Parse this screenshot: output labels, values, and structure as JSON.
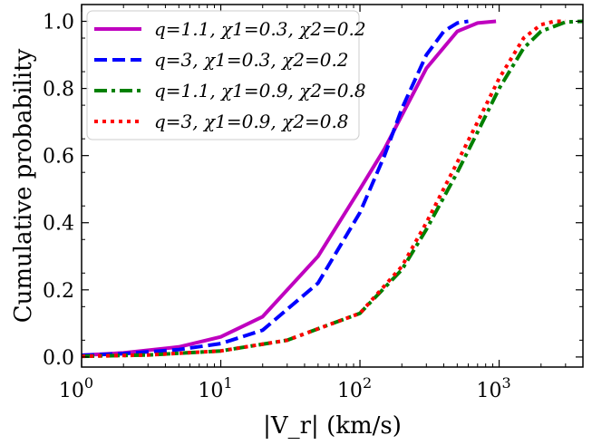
{
  "chart_data": {
    "type": "line",
    "title": "",
    "xlabel": "|V_r| (km/s)",
    "ylabel": "Cumulative probability",
    "xscale": "log",
    "xlim": [
      1,
      4000
    ],
    "ylim": [
      -0.03,
      1.05
    ],
    "x_major_ticks": [
      1,
      10,
      100,
      1000
    ],
    "x_tick_labels": [
      {
        "base": "10",
        "exp": "0"
      },
      {
        "base": "10",
        "exp": "1"
      },
      {
        "base": "10",
        "exp": "2"
      },
      {
        "base": "10",
        "exp": "3"
      }
    ],
    "y_ticks": [
      0.0,
      0.2,
      0.4,
      0.6,
      0.8,
      1.0
    ],
    "y_tick_labels": [
      "0.0",
      "0.2",
      "0.4",
      "0.6",
      "0.8",
      "1.0"
    ],
    "legend_position": "top-left",
    "series": [
      {
        "name": "q=1.1, χ1=0.3, χ2=0.2",
        "color": "#bf00bf",
        "style": "solid",
        "x": [
          1,
          2,
          5,
          10,
          20,
          50,
          100,
          150,
          200,
          300,
          500,
          700,
          950
        ],
        "y": [
          0.005,
          0.012,
          0.03,
          0.06,
          0.12,
          0.3,
          0.5,
          0.62,
          0.72,
          0.86,
          0.97,
          0.995,
          1.0
        ]
      },
      {
        "name": "q=3, χ1=0.3, χ2=0.2",
        "color": "#0000ff",
        "style": "dashed",
        "x": [
          1,
          2,
          5,
          10,
          20,
          50,
          100,
          150,
          200,
          300,
          400,
          500,
          600
        ],
        "y": [
          0.005,
          0.01,
          0.022,
          0.04,
          0.08,
          0.22,
          0.43,
          0.6,
          0.74,
          0.9,
          0.97,
          0.995,
          1.0
        ]
      },
      {
        "name": "q=1.1, χ1=0.9, χ2=0.8",
        "color": "#008000",
        "style": "dashdot",
        "x": [
          1,
          3,
          10,
          30,
          100,
          200,
          300,
          500,
          700,
          1000,
          1500,
          2000,
          3000,
          4000
        ],
        "y": [
          0.002,
          0.006,
          0.018,
          0.05,
          0.13,
          0.26,
          0.38,
          0.55,
          0.67,
          0.8,
          0.92,
          0.97,
          0.998,
          1.0
        ]
      },
      {
        "name": "q=3, χ1=0.9, χ2=0.8",
        "color": "#ff0000",
        "style": "dotted",
        "x": [
          1,
          3,
          10,
          30,
          100,
          200,
          300,
          500,
          700,
          1000,
          1500,
          2000,
          2500,
          3000
        ],
        "y": [
          0.002,
          0.006,
          0.018,
          0.05,
          0.13,
          0.27,
          0.4,
          0.58,
          0.7,
          0.83,
          0.95,
          0.99,
          1.0,
          1.0
        ]
      }
    ]
  }
}
